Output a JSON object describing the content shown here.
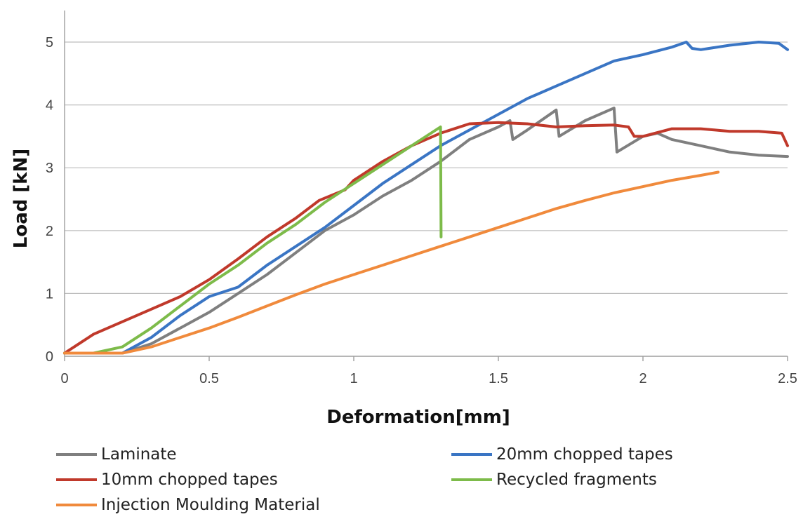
{
  "chart_data": {
    "type": "line",
    "title": "",
    "xlabel": "Deformation[mm]",
    "ylabel": "Load [kN]",
    "xlim": [
      0,
      2.5
    ],
    "ylim": [
      0,
      5
    ],
    "x_ticks": [
      "0",
      "0.5",
      "1",
      "1.5",
      "2",
      "2.5"
    ],
    "y_ticks": [
      "0",
      "1",
      "2",
      "3",
      "4",
      "5"
    ],
    "grid": "horizontal",
    "legend_position": "bottom",
    "series": [
      {
        "name": "Laminate",
        "color": "#7f7f7f",
        "points": [
          [
            0,
            0.05
          ],
          [
            0.2,
            0.05
          ],
          [
            0.3,
            0.2
          ],
          [
            0.4,
            0.45
          ],
          [
            0.5,
            0.7
          ],
          [
            0.6,
            1.0
          ],
          [
            0.7,
            1.3
          ],
          [
            0.8,
            1.65
          ],
          [
            0.9,
            2.0
          ],
          [
            1.0,
            2.25
          ],
          [
            1.1,
            2.55
          ],
          [
            1.2,
            2.8
          ],
          [
            1.3,
            3.1
          ],
          [
            1.4,
            3.45
          ],
          [
            1.5,
            3.65
          ],
          [
            1.54,
            3.75
          ],
          [
            1.55,
            3.45
          ],
          [
            1.6,
            3.6
          ],
          [
            1.7,
            3.92
          ],
          [
            1.71,
            3.5
          ],
          [
            1.8,
            3.75
          ],
          [
            1.9,
            3.95
          ],
          [
            1.91,
            3.25
          ],
          [
            2.0,
            3.5
          ],
          [
            2.05,
            3.55
          ],
          [
            2.1,
            3.45
          ],
          [
            2.2,
            3.35
          ],
          [
            2.3,
            3.25
          ],
          [
            2.4,
            3.2
          ],
          [
            2.5,
            3.18
          ]
        ]
      },
      {
        "name": "20mm chopped tapes",
        "color": "#3a75c4",
        "points": [
          [
            0,
            0.05
          ],
          [
            0.2,
            0.05
          ],
          [
            0.3,
            0.3
          ],
          [
            0.4,
            0.65
          ],
          [
            0.5,
            0.95
          ],
          [
            0.6,
            1.1
          ],
          [
            0.7,
            1.45
          ],
          [
            0.8,
            1.75
          ],
          [
            0.9,
            2.05
          ],
          [
            1.0,
            2.4
          ],
          [
            1.1,
            2.75
          ],
          [
            1.2,
            3.05
          ],
          [
            1.3,
            3.35
          ],
          [
            1.4,
            3.6
          ],
          [
            1.5,
            3.85
          ],
          [
            1.6,
            4.1
          ],
          [
            1.7,
            4.3
          ],
          [
            1.8,
            4.5
          ],
          [
            1.9,
            4.7
          ],
          [
            2.0,
            4.8
          ],
          [
            2.1,
            4.92
          ],
          [
            2.15,
            5.0
          ],
          [
            2.17,
            4.9
          ],
          [
            2.2,
            4.88
          ],
          [
            2.3,
            4.95
          ],
          [
            2.4,
            5.0
          ],
          [
            2.47,
            4.98
          ],
          [
            2.5,
            4.88
          ]
        ]
      },
      {
        "name": "10mm chopped tapes",
        "color": "#c0392b",
        "points": [
          [
            0,
            0.05
          ],
          [
            0.05,
            0.2
          ],
          [
            0.1,
            0.35
          ],
          [
            0.2,
            0.55
          ],
          [
            0.3,
            0.75
          ],
          [
            0.4,
            0.95
          ],
          [
            0.5,
            1.22
          ],
          [
            0.6,
            1.55
          ],
          [
            0.7,
            1.9
          ],
          [
            0.8,
            2.2
          ],
          [
            0.88,
            2.48
          ],
          [
            0.97,
            2.65
          ],
          [
            1.0,
            2.8
          ],
          [
            1.1,
            3.1
          ],
          [
            1.2,
            3.35
          ],
          [
            1.3,
            3.55
          ],
          [
            1.4,
            3.7
          ],
          [
            1.5,
            3.72
          ],
          [
            1.6,
            3.7
          ],
          [
            1.7,
            3.65
          ],
          [
            1.8,
            3.67
          ],
          [
            1.9,
            3.68
          ],
          [
            1.95,
            3.65
          ],
          [
            1.97,
            3.5
          ],
          [
            2.0,
            3.5
          ],
          [
            2.1,
            3.62
          ],
          [
            2.2,
            3.62
          ],
          [
            2.3,
            3.58
          ],
          [
            2.4,
            3.58
          ],
          [
            2.48,
            3.55
          ],
          [
            2.5,
            3.35
          ]
        ]
      },
      {
        "name": "Recycled fragments",
        "color": "#7dbb4a",
        "points": [
          [
            0,
            0.05
          ],
          [
            0.1,
            0.05
          ],
          [
            0.2,
            0.15
          ],
          [
            0.3,
            0.45
          ],
          [
            0.4,
            0.8
          ],
          [
            0.5,
            1.15
          ],
          [
            0.6,
            1.45
          ],
          [
            0.7,
            1.8
          ],
          [
            0.8,
            2.1
          ],
          [
            0.9,
            2.45
          ],
          [
            1.0,
            2.75
          ],
          [
            1.1,
            3.05
          ],
          [
            1.2,
            3.35
          ],
          [
            1.3,
            3.65
          ],
          [
            1.302,
            1.9
          ]
        ]
      },
      {
        "name": "Injection Moulding Material",
        "color": "#f08a3c",
        "points": [
          [
            0,
            0.05
          ],
          [
            0.2,
            0.05
          ],
          [
            0.3,
            0.15
          ],
          [
            0.4,
            0.3
          ],
          [
            0.5,
            0.45
          ],
          [
            0.6,
            0.62
          ],
          [
            0.7,
            0.8
          ],
          [
            0.8,
            0.98
          ],
          [
            0.9,
            1.15
          ],
          [
            1.0,
            1.3
          ],
          [
            1.1,
            1.45
          ],
          [
            1.2,
            1.6
          ],
          [
            1.3,
            1.75
          ],
          [
            1.4,
            1.9
          ],
          [
            1.5,
            2.05
          ],
          [
            1.6,
            2.2
          ],
          [
            1.7,
            2.35
          ],
          [
            1.8,
            2.48
          ],
          [
            1.9,
            2.6
          ],
          [
            2.0,
            2.7
          ],
          [
            2.1,
            2.8
          ],
          [
            2.2,
            2.88
          ],
          [
            2.26,
            2.93
          ]
        ]
      }
    ]
  }
}
